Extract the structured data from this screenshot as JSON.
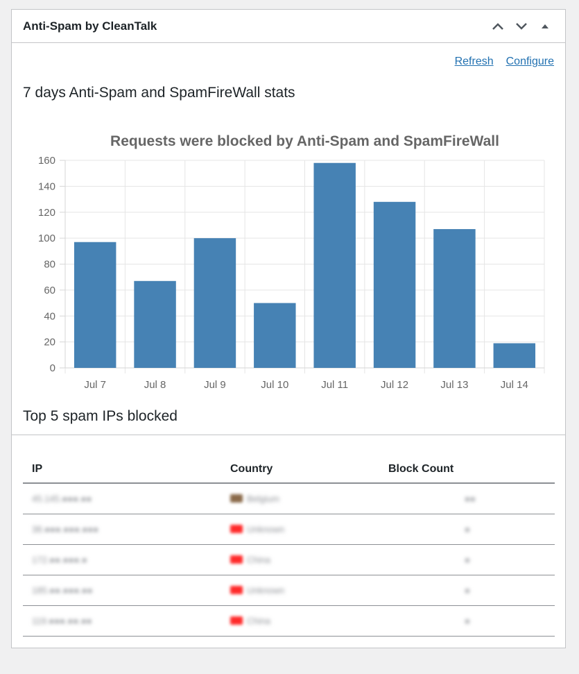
{
  "widget": {
    "title": "Anti-Spam by CleanTalk",
    "icons": [
      "chevron-up-icon",
      "chevron-down-icon",
      "toggle-triangle-icon"
    ]
  },
  "links": {
    "refresh": "Refresh",
    "configure": "Configure"
  },
  "stats_heading": "7 days Anti-Spam and SpamFireWall stats",
  "chart_data": {
    "type": "bar",
    "title": "Requests were blocked by Anti-Spam and SpamFireWall",
    "categories": [
      "Jul 7",
      "Jul 8",
      "Jul 9",
      "Jul 10",
      "Jul 11",
      "Jul 12",
      "Jul 13",
      "Jul 14"
    ],
    "values": [
      97,
      67,
      100,
      50,
      158,
      128,
      107,
      19
    ],
    "ylim": [
      0,
      160
    ],
    "yticks": [
      0,
      20,
      40,
      60,
      80,
      100,
      120,
      140,
      160
    ],
    "xlabel": "",
    "ylabel": "",
    "grid": true,
    "bar_color": "#4682b4"
  },
  "top_ips_heading": "Top 5 spam IPs blocked",
  "table": {
    "columns": [
      "IP",
      "Country",
      "Block Count"
    ],
    "rows": [
      {
        "ip": "45.145.●●●.●●",
        "country": "Belgium",
        "flag_color": "#8a6a4a",
        "count": "●●"
      },
      {
        "ip": "38.●●●.●●●.●●●",
        "country": "Unknown",
        "flag_color": "#ff2a2a",
        "count": "●"
      },
      {
        "ip": "172.●●.●●●.●",
        "country": "China",
        "flag_color": "#ff2a2a",
        "count": "●"
      },
      {
        "ip": "185.●●.●●●.●●",
        "country": "Unknown",
        "flag_color": "#ff2a2a",
        "count": "●"
      },
      {
        "ip": "119.●●●.●●.●●",
        "country": "China",
        "flag_color": "#ff2a2a",
        "count": "●"
      }
    ]
  }
}
